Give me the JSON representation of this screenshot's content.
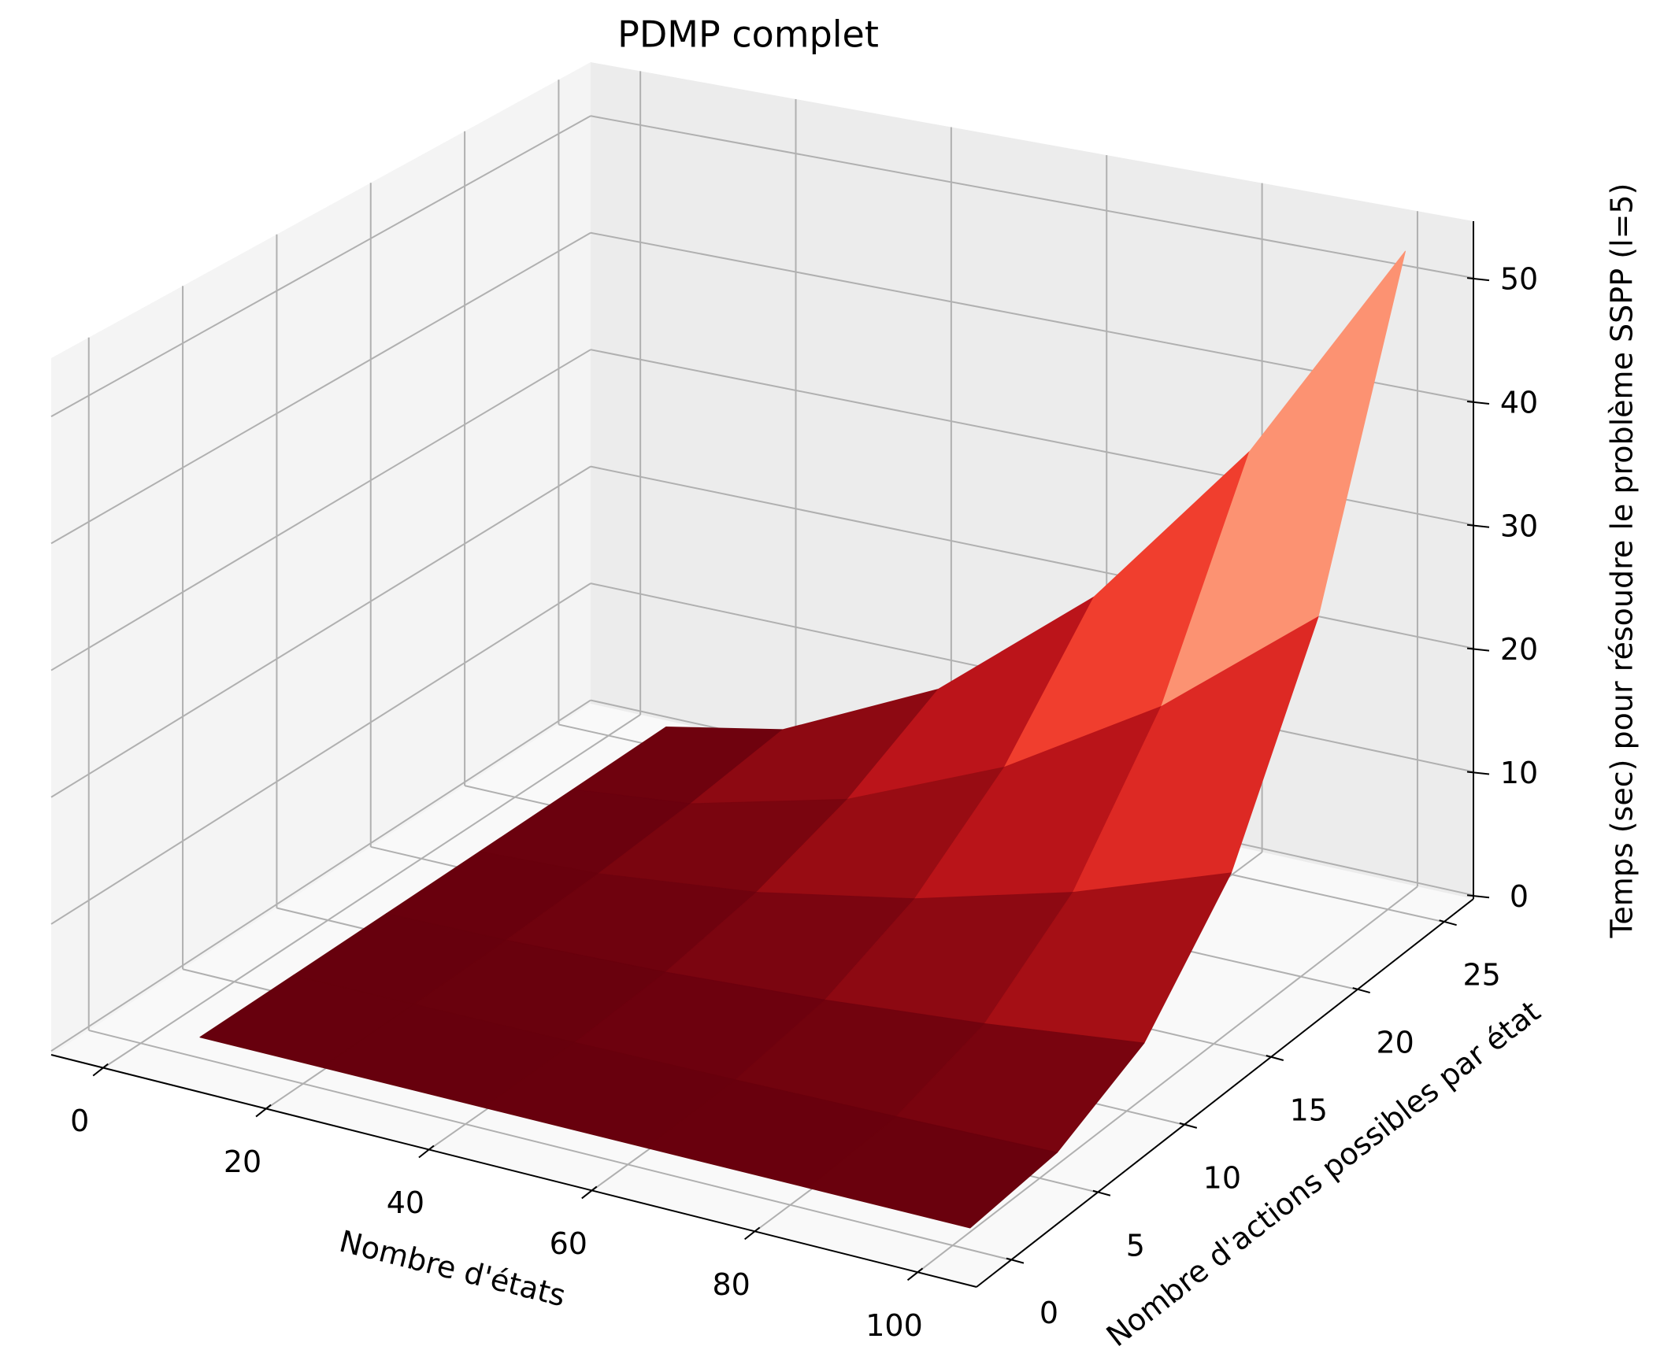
{
  "chart_data": {
    "type": "surface",
    "title": "PDMP complet",
    "xlabel": "Nombre d'états",
    "ylabel": "Nombre d'actions possibles par état",
    "zlabel": "Temps (sec) pour résoudre le problème SSPP (l=5)",
    "x": [
      5,
      20,
      40,
      60,
      80,
      100
    ],
    "y": [
      1,
      6,
      11,
      16,
      21,
      26
    ],
    "z": [
      [
        0,
        0,
        0.01,
        0.03,
        0.07,
        0.13
      ],
      [
        0,
        0.03,
        0.16,
        0.48,
        1.1,
        2.08
      ],
      [
        0,
        0.1,
        0.63,
        1.94,
        4.38,
        8.32
      ],
      [
        0,
        0.23,
        1.42,
        4.36,
        9.86,
        18.72
      ],
      [
        0,
        0.41,
        2.52,
        7.76,
        17.54,
        33.28
      ],
      [
        0,
        0.64,
        3.94,
        12.12,
        27.4,
        52
      ]
    ],
    "colormap": "Reds_r",
    "xlim": [
      -6.4,
      107.2
    ],
    "ylim": [
      -2,
      26.7
    ],
    "zlim": [
      -0.3,
      54.6
    ],
    "xticks": [
      0,
      20,
      40,
      60,
      80,
      100
    ],
    "yticks": [
      0,
      5,
      10,
      15,
      20,
      25
    ],
    "zticks": [
      0,
      10,
      20,
      30,
      40,
      50
    ],
    "grid": true
  }
}
